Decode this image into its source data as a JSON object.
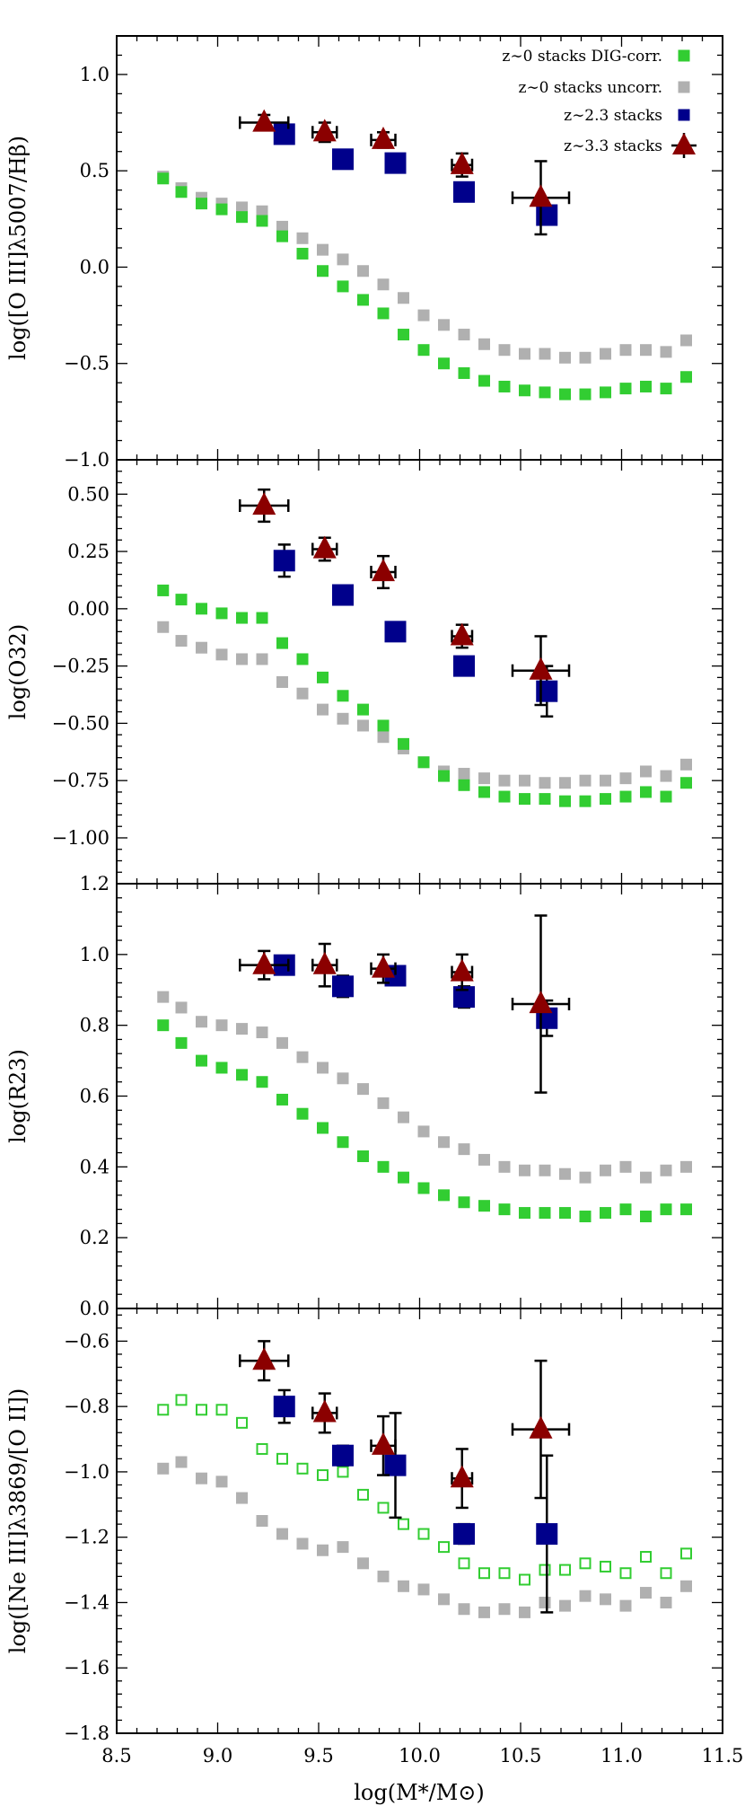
{
  "colors": {
    "z0_dig": "#32cd32",
    "z0_uncorr": "#b0b0b0",
    "z23": "#00008b",
    "z33": "#8b0000"
  },
  "xlabel": "log(M*/M⊙)",
  "x_ticks": [
    "8.5",
    "9.0",
    "9.5",
    "10.0",
    "10.5",
    "11.0",
    "11.5"
  ],
  "legend": [
    {
      "label": "z∼0 stacks DIG-corr.",
      "marker": "square",
      "color": "#32cd32"
    },
    {
      "label": "z∼0 stacks uncorr.",
      "marker": "square",
      "color": "#b0b0b0"
    },
    {
      "label": "z∼2.3 stacks",
      "marker": "square",
      "color": "#00008b"
    },
    {
      "label": "z∼3.3 stacks",
      "marker": "triangle",
      "color": "#8b0000"
    }
  ],
  "chart_data": [
    {
      "type": "scatter",
      "ylabel": "log([O III]λ5007/Hβ)",
      "xlim": [
        8.5,
        11.5
      ],
      "ylim": [
        -1.0,
        1.2
      ],
      "y_ticks": [
        -1.0,
        -0.5,
        0.0,
        0.5,
        1.0
      ],
      "y_tick_labels": [
        "−1.0",
        "−0.5",
        "0.0",
        "0.5",
        "1.0"
      ],
      "series": [
        {
          "name": "z∼0 stacks DIG-corr.",
          "marker": "square",
          "fill": true,
          "x": [
            8.73,
            8.82,
            8.92,
            9.02,
            9.12,
            9.22,
            9.32,
            9.42,
            9.52,
            9.62,
            9.72,
            9.82,
            9.92,
            10.02,
            10.12,
            10.22,
            10.32,
            10.42,
            10.52,
            10.62,
            10.72,
            10.82,
            10.92,
            11.02,
            11.12,
            11.22,
            11.32
          ],
          "y": [
            0.46,
            0.39,
            0.33,
            0.3,
            0.26,
            0.24,
            0.16,
            0.07,
            -0.02,
            -0.1,
            -0.17,
            -0.24,
            -0.35,
            -0.43,
            -0.5,
            -0.55,
            -0.59,
            -0.62,
            -0.64,
            -0.65,
            -0.66,
            -0.66,
            -0.65,
            -0.63,
            -0.62,
            -0.63,
            -0.57
          ]
        },
        {
          "name": "z∼0 stacks uncorr.",
          "marker": "square",
          "fill": true,
          "x": [
            8.73,
            8.82,
            8.92,
            9.02,
            9.12,
            9.22,
            9.32,
            9.42,
            9.52,
            9.62,
            9.72,
            9.82,
            9.92,
            10.02,
            10.12,
            10.22,
            10.32,
            10.42,
            10.52,
            10.62,
            10.72,
            10.82,
            10.92,
            11.02,
            11.12,
            11.22,
            11.32
          ],
          "y": [
            0.47,
            0.41,
            0.36,
            0.33,
            0.31,
            0.29,
            0.21,
            0.15,
            0.09,
            0.04,
            -0.02,
            -0.09,
            -0.16,
            -0.25,
            -0.3,
            -0.35,
            -0.4,
            -0.43,
            -0.45,
            -0.45,
            -0.47,
            -0.47,
            -0.45,
            -0.43,
            -0.43,
            -0.44,
            -0.38
          ]
        },
        {
          "name": "z∼2.3 stacks",
          "marker": "square-big",
          "fill": true,
          "x": [
            9.33,
            9.62,
            9.88,
            10.22,
            10.63
          ],
          "y": [
            0.69,
            0.56,
            0.54,
            0.39,
            0.27
          ],
          "yerr": [
            0.02,
            0.02,
            0.02,
            0.02,
            0.02
          ]
        },
        {
          "name": "z∼3.3 stacks",
          "marker": "triangle",
          "fill": true,
          "x": [
            9.23,
            9.53,
            9.82,
            10.21,
            10.6
          ],
          "y": [
            0.75,
            0.7,
            0.66,
            0.53,
            0.36
          ],
          "yerr": [
            0.04,
            0.05,
            0.04,
            0.06,
            0.19
          ],
          "xerr": [
            0.12,
            0.06,
            0.06,
            0.05,
            0.14
          ]
        }
      ]
    },
    {
      "type": "scatter",
      "ylabel": "log(O32)",
      "xlim": [
        8.5,
        11.5
      ],
      "ylim": [
        -1.2,
        0.65
      ],
      "y_ticks": [
        -1.0,
        -0.75,
        -0.5,
        -0.25,
        0.0,
        0.25,
        0.5
      ],
      "y_tick_labels": [
        "−1.00",
        "−0.75",
        "−0.50",
        "−0.25",
        "0.00",
        "0.25",
        "0.50"
      ],
      "series": [
        {
          "name": "z∼0 stacks DIG-corr.",
          "marker": "square",
          "fill": true,
          "x": [
            8.73,
            8.82,
            8.92,
            9.02,
            9.12,
            9.22,
            9.32,
            9.42,
            9.52,
            9.62,
            9.72,
            9.82,
            9.92,
            10.02,
            10.12,
            10.22,
            10.32,
            10.42,
            10.52,
            10.62,
            10.72,
            10.82,
            10.92,
            11.02,
            11.12,
            11.22,
            11.32
          ],
          "y": [
            0.08,
            0.04,
            0.0,
            -0.02,
            -0.04,
            -0.04,
            -0.15,
            -0.22,
            -0.3,
            -0.38,
            -0.44,
            -0.51,
            -0.59,
            -0.67,
            -0.73,
            -0.77,
            -0.8,
            -0.82,
            -0.83,
            -0.83,
            -0.84,
            -0.84,
            -0.83,
            -0.82,
            -0.8,
            -0.82,
            -0.76
          ]
        },
        {
          "name": "z∼0 stacks uncorr.",
          "marker": "square",
          "fill": true,
          "x": [
            8.73,
            8.82,
            8.92,
            9.02,
            9.12,
            9.22,
            9.32,
            9.42,
            9.52,
            9.62,
            9.72,
            9.82,
            9.92,
            10.02,
            10.12,
            10.22,
            10.32,
            10.42,
            10.52,
            10.62,
            10.72,
            10.82,
            10.92,
            11.02,
            11.12,
            11.22,
            11.32
          ],
          "y": [
            -0.08,
            -0.14,
            -0.17,
            -0.2,
            -0.22,
            -0.22,
            -0.32,
            -0.37,
            -0.44,
            -0.48,
            -0.51,
            -0.56,
            -0.61,
            -0.67,
            -0.71,
            -0.72,
            -0.74,
            -0.75,
            -0.75,
            -0.76,
            -0.76,
            -0.75,
            -0.75,
            -0.74,
            -0.71,
            -0.73,
            -0.68
          ]
        },
        {
          "name": "z∼2.3 stacks",
          "marker": "square-big",
          "fill": true,
          "x": [
            9.33,
            9.62,
            9.88,
            10.22,
            10.63
          ],
          "y": [
            0.21,
            0.06,
            -0.1,
            -0.25,
            -0.36
          ],
          "yerr": [
            0.07,
            0.02,
            0.03,
            0.03,
            0.11
          ]
        },
        {
          "name": "z∼3.3 stacks",
          "marker": "triangle",
          "fill": true,
          "x": [
            9.23,
            9.53,
            9.82,
            10.21,
            10.6
          ],
          "y": [
            0.45,
            0.26,
            0.16,
            -0.12,
            -0.27
          ],
          "yerr": [
            0.07,
            0.05,
            0.07,
            0.05,
            0.15
          ],
          "xerr": [
            0.12,
            0.06,
            0.06,
            0.05,
            0.14
          ]
        }
      ]
    },
    {
      "type": "scatter",
      "ylabel": "log(R23)",
      "xlim": [
        8.5,
        11.5
      ],
      "ylim": [
        0.0,
        1.2
      ],
      "y_ticks": [
        0.0,
        0.2,
        0.4,
        0.6,
        0.8,
        1.0,
        1.2
      ],
      "y_tick_labels": [
        "0.0",
        "0.2",
        "0.4",
        "0.6",
        "0.8",
        "1.0",
        "1.2"
      ],
      "series": [
        {
          "name": "z∼0 stacks DIG-corr.",
          "marker": "square",
          "fill": true,
          "x": [
            8.73,
            8.82,
            8.92,
            9.02,
            9.12,
            9.22,
            9.32,
            9.42,
            9.52,
            9.62,
            9.72,
            9.82,
            9.92,
            10.02,
            10.12,
            10.22,
            10.32,
            10.42,
            10.52,
            10.62,
            10.72,
            10.82,
            10.92,
            11.02,
            11.12,
            11.22,
            11.32
          ],
          "y": [
            0.8,
            0.75,
            0.7,
            0.68,
            0.66,
            0.64,
            0.59,
            0.55,
            0.51,
            0.47,
            0.43,
            0.4,
            0.37,
            0.34,
            0.32,
            0.3,
            0.29,
            0.28,
            0.27,
            0.27,
            0.27,
            0.26,
            0.27,
            0.28,
            0.26,
            0.28,
            0.28
          ]
        },
        {
          "name": "z∼0 stacks uncorr.",
          "marker": "square",
          "fill": true,
          "x": [
            8.73,
            8.82,
            8.92,
            9.02,
            9.12,
            9.22,
            9.32,
            9.42,
            9.52,
            9.62,
            9.72,
            9.82,
            9.92,
            10.02,
            10.12,
            10.22,
            10.32,
            10.42,
            10.52,
            10.62,
            10.72,
            10.82,
            10.92,
            11.02,
            11.12,
            11.22,
            11.32
          ],
          "y": [
            0.88,
            0.85,
            0.81,
            0.8,
            0.79,
            0.78,
            0.75,
            0.71,
            0.68,
            0.65,
            0.62,
            0.58,
            0.54,
            0.5,
            0.47,
            0.45,
            0.42,
            0.4,
            0.39,
            0.39,
            0.38,
            0.37,
            0.39,
            0.4,
            0.37,
            0.39,
            0.4
          ]
        },
        {
          "name": "z∼2.3 stacks",
          "marker": "square-big",
          "fill": true,
          "x": [
            9.33,
            9.62,
            9.88,
            10.22,
            10.63
          ],
          "y": [
            0.97,
            0.91,
            0.94,
            0.88,
            0.82
          ],
          "yerr": [
            0.02,
            0.03,
            0.02,
            0.03,
            0.05
          ]
        },
        {
          "name": "z∼3.3 stacks",
          "marker": "triangle",
          "fill": true,
          "x": [
            9.23,
            9.53,
            9.82,
            10.21,
            10.6
          ],
          "y": [
            0.97,
            0.97,
            0.96,
            0.95,
            0.86
          ],
          "yerr": [
            0.04,
            0.06,
            0.04,
            0.05,
            0.25
          ],
          "xerr": [
            0.12,
            0.06,
            0.06,
            0.05,
            0.14
          ]
        }
      ]
    },
    {
      "type": "scatter",
      "ylabel": "log([Ne III]λ3869/[O II])",
      "xlim": [
        8.5,
        11.5
      ],
      "ylim": [
        -1.8,
        -0.5
      ],
      "y_ticks": [
        -1.8,
        -1.6,
        -1.4,
        -1.2,
        -1.0,
        -0.8,
        -0.6
      ],
      "y_tick_labels": [
        "−1.8",
        "−1.6",
        "−1.4",
        "−1.2",
        "−1.0",
        "−0.8",
        "−0.6"
      ],
      "series": [
        {
          "name": "z∼0 stacks DIG-corr.",
          "marker": "square",
          "fill": false,
          "x": [
            8.73,
            8.82,
            8.92,
            9.02,
            9.12,
            9.22,
            9.32,
            9.42,
            9.52,
            9.62,
            9.72,
            9.82,
            9.92,
            10.02,
            10.12,
            10.22,
            10.32,
            10.42,
            10.52,
            10.62,
            10.72,
            10.82,
            10.92,
            11.02,
            11.12,
            11.22,
            11.32
          ],
          "y": [
            -0.81,
            -0.78,
            -0.81,
            -0.81,
            -0.85,
            -0.93,
            -0.96,
            -0.99,
            -1.01,
            -1.0,
            -1.07,
            -1.11,
            -1.16,
            -1.19,
            -1.23,
            -1.28,
            -1.31,
            -1.31,
            -1.33,
            -1.3,
            -1.3,
            -1.28,
            -1.29,
            -1.31,
            -1.26,
            -1.31,
            -1.25
          ]
        },
        {
          "name": "z∼0 stacks uncorr.",
          "marker": "square",
          "fill": true,
          "x": [
            8.73,
            8.82,
            8.92,
            9.02,
            9.12,
            9.22,
            9.32,
            9.42,
            9.52,
            9.62,
            9.72,
            9.82,
            9.92,
            10.02,
            10.12,
            10.22,
            10.32,
            10.42,
            10.52,
            10.62,
            10.72,
            10.82,
            10.92,
            11.02,
            11.12,
            11.22,
            11.32
          ],
          "y": [
            -0.99,
            -0.97,
            -1.02,
            -1.03,
            -1.08,
            -1.15,
            -1.19,
            -1.22,
            -1.24,
            -1.23,
            -1.28,
            -1.32,
            -1.35,
            -1.36,
            -1.39,
            -1.42,
            -1.43,
            -1.42,
            -1.43,
            -1.4,
            -1.41,
            -1.38,
            -1.39,
            -1.41,
            -1.37,
            -1.4,
            -1.35
          ]
        },
        {
          "name": "z∼2.3 stacks",
          "marker": "square-big",
          "fill": true,
          "x": [
            9.33,
            9.62,
            9.88,
            10.22,
            10.63
          ],
          "y": [
            -0.8,
            -0.95,
            -0.98,
            -1.19,
            -1.19
          ],
          "yerr": [
            0.05,
            0.03,
            0.16,
            0.03,
            0.24
          ]
        },
        {
          "name": "z∼3.3 stacks",
          "marker": "triangle",
          "fill": true,
          "x": [
            9.23,
            9.53,
            9.82,
            10.21,
            10.6
          ],
          "y": [
            -0.66,
            -0.82,
            -0.92,
            -1.02,
            -0.87
          ],
          "yerr": [
            0.06,
            0.06,
            0.09,
            0.09,
            0.21
          ],
          "xerr": [
            0.12,
            0.06,
            0.06,
            0.05,
            0.14
          ]
        }
      ]
    }
  ]
}
